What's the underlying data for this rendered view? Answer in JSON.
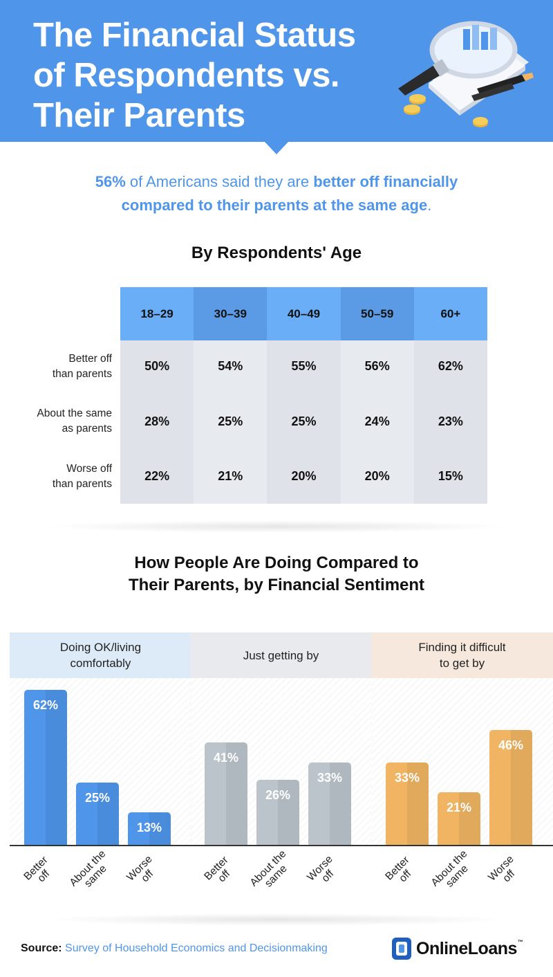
{
  "header": {
    "title_lines": [
      "The Financial Status",
      "of Respondents vs.",
      "Their Parents"
    ]
  },
  "intro": {
    "pct": "56%",
    "text1": " of Americans said they are ",
    "bold1": "better off financially",
    "bold2": "compared to their parents at the same age",
    "end": "."
  },
  "age_section": {
    "title": "By Respondents' Age"
  },
  "sentiment_section": {
    "title_line1": "How People Are Doing Compared to",
    "title_line2": "Their Parents, by Financial Sentiment"
  },
  "chart_data": [
    {
      "type": "table",
      "title": "By Respondents' Age",
      "columns": [
        "18–29",
        "30–39",
        "40–49",
        "50–59",
        "60+"
      ],
      "rows": [
        {
          "label_lines": [
            "Better off",
            "than parents"
          ],
          "values": [
            "50%",
            "54%",
            "55%",
            "56%",
            "62%"
          ]
        },
        {
          "label_lines": [
            "About the same",
            "as parents"
          ],
          "values": [
            "28%",
            "25%",
            "25%",
            "24%",
            "23%"
          ]
        },
        {
          "label_lines": [
            "Worse off",
            "than parents"
          ],
          "values": [
            "22%",
            "21%",
            "20%",
            "20%",
            "15%"
          ]
        }
      ],
      "colors": {
        "header_a": "#6aaef8",
        "header_b": "#5b9be6",
        "body_a": "#dfe3e9",
        "body_b": "#e7eaee"
      }
    },
    {
      "type": "bar",
      "title_lines": [
        "Doing OK/living",
        "comfortably"
      ],
      "categories": [
        [
          "Better",
          "off"
        ],
        [
          "About the",
          "same"
        ],
        [
          "Worse",
          "off"
        ]
      ],
      "values": [
        62,
        25,
        13
      ],
      "labels": [
        "62%",
        "25%",
        "13%"
      ],
      "ylim": [
        0,
        70
      ],
      "color": "#4f95ea",
      "header_color": "#ddeaf7"
    },
    {
      "type": "bar",
      "title_lines": [
        "Just getting by"
      ],
      "categories": [
        [
          "Better",
          "off"
        ],
        [
          "About the",
          "same"
        ],
        [
          "Worse",
          "off"
        ]
      ],
      "values": [
        41,
        26,
        33
      ],
      "labels": [
        "41%",
        "26%",
        "33%"
      ],
      "ylim": [
        0,
        70
      ],
      "color": "#bcc4cb",
      "header_color": "#e8eaed"
    },
    {
      "type": "bar",
      "title_lines": [
        "Finding it difficult",
        "to get by"
      ],
      "categories": [
        [
          "Better",
          "off"
        ],
        [
          "About the",
          "same"
        ],
        [
          "Worse",
          "off"
        ]
      ],
      "values": [
        33,
        21,
        46
      ],
      "labels": [
        "33%",
        "21%",
        "46%"
      ],
      "ylim": [
        0,
        70
      ],
      "color": "#f0b462",
      "header_color": "#f6e8dc"
    }
  ],
  "footer": {
    "source_label": "Source:",
    "source_text": " Survey of Household Economics and Decisionmaking",
    "logo_text": "OnlineLoans",
    "logo_tm": "™"
  }
}
